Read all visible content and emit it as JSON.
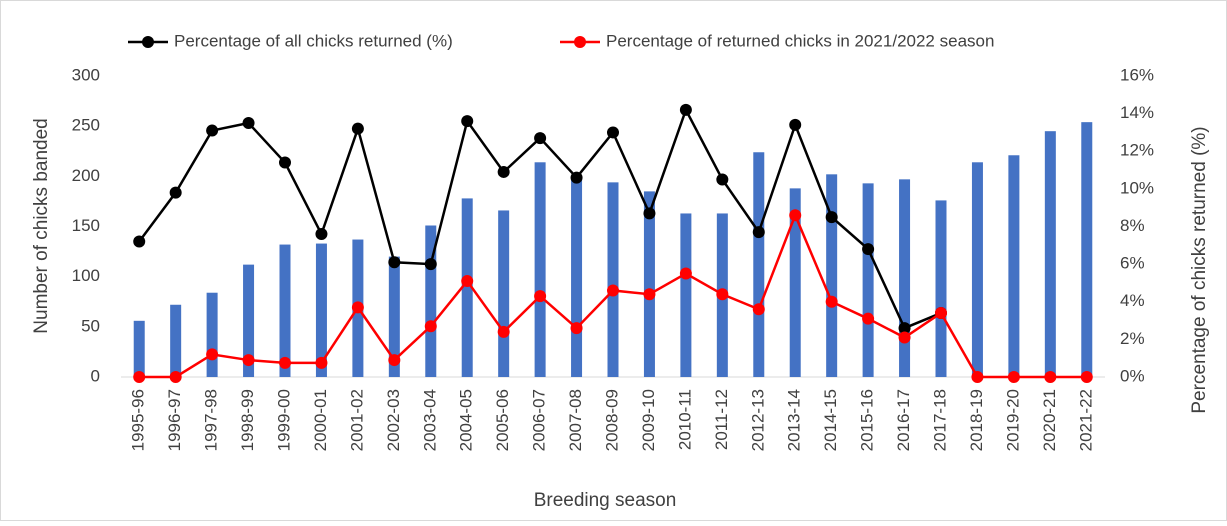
{
  "chart_data": {
    "type": "bar_line",
    "y_label": "Number of chicks banded",
    "y2_label": "Percentage of chicks returned (%)",
    "x_label": "Breeding season",
    "categories": [
      "1995-96",
      "1996-97",
      "1997-98",
      "1998-99",
      "1999-00",
      "2000-01",
      "2001-02",
      "2002-03",
      "2003-04",
      "2004-05",
      "2005-06",
      "2006-07",
      "2007-08",
      "2008-09",
      "2009-10",
      "2010-11",
      "2011-12",
      "2012-13",
      "2013-14",
      "2014-15",
      "2015-16",
      "2016-17",
      "2017-18",
      "2018-19",
      "2019-20",
      "2020-21",
      "2021-22"
    ],
    "series": [
      {
        "name": "Number of chicks banded",
        "type": "bar",
        "color": "#4472c4",
        "values": [
          56,
          72,
          84,
          112,
          132,
          133,
          137,
          120,
          151,
          178,
          166,
          214,
          198,
          194,
          185,
          163,
          163,
          224,
          188,
          202,
          193,
          197,
          176,
          214,
          221,
          245,
          254
        ]
      },
      {
        "name": "Percentage of all chicks returned (%)",
        "type": "line",
        "axis": "y2",
        "color": "#000000",
        "values": [
          7.2,
          9.8,
          13.1,
          13.5,
          11.4,
          7.6,
          13.2,
          6.1,
          6.0,
          13.6,
          10.9,
          12.7,
          10.6,
          13.0,
          8.7,
          14.2,
          10.5,
          7.7,
          13.4,
          8.5,
          6.8,
          2.6,
          3.4,
          null,
          null,
          null,
          null
        ]
      },
      {
        "name": "Percentage of returned chicks in 2021/2022 season",
        "type": "line",
        "axis": "y2",
        "color": "#ff0000",
        "values": [
          0,
          0,
          1.2,
          0.9,
          0.75,
          0.75,
          3.7,
          0.9,
          2.7,
          5.1,
          2.4,
          4.3,
          2.6,
          4.6,
          4.4,
          5.5,
          4.4,
          3.6,
          8.6,
          4.0,
          3.1,
          2.1,
          3.4,
          0,
          0,
          0,
          0
        ]
      }
    ],
    "ylim": [
      0,
      300
    ],
    "yticks": [
      0,
      50,
      100,
      150,
      200,
      250,
      300
    ],
    "y2lim": [
      0,
      16
    ],
    "y2ticks": [
      {
        "value": 0,
        "label": "0%"
      },
      {
        "value": 2,
        "label": "2%"
      },
      {
        "value": 4,
        "label": "4%"
      },
      {
        "value": 6,
        "label": "6%"
      },
      {
        "value": 8,
        "label": "8%"
      },
      {
        "value": 10,
        "label": "10%"
      },
      {
        "value": 12,
        "label": "12%"
      },
      {
        "value": 14,
        "label": "14%"
      },
      {
        "value": 16,
        "label": "16%"
      }
    ],
    "grid": false
  }
}
